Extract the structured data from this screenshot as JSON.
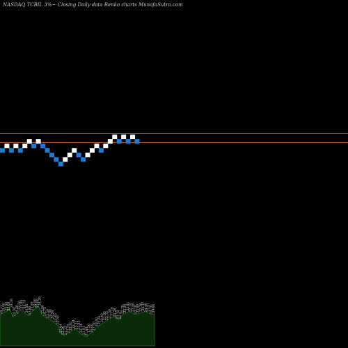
{
  "header": {
    "title": "NASDAQ TCBIL  3%~  Closing Daily data  Renko  charts MunafaSutra.com"
  },
  "colors": {
    "background": "#000000",
    "up_brick": "#ffffff",
    "down_brick": "#1e7ad6",
    "reference_line": "#c8641e",
    "volume_area": "#0a2a0a",
    "volume_outline": "#3a8a3a"
  },
  "chart_data": {
    "type": "renko",
    "title": "NASDAQ TCBIL  3%~  Closing Daily data  Renko  charts MunafaSutra.com",
    "brick_size_label": "3%~",
    "reference_lines": [
      "upper",
      "lower"
    ],
    "bricks": [
      {
        "dir": "down",
        "level": 0
      },
      {
        "dir": "up",
        "level": 1
      },
      {
        "dir": "down",
        "level": 0
      },
      {
        "dir": "up",
        "level": 1
      },
      {
        "dir": "down",
        "level": 0
      },
      {
        "dir": "up",
        "level": 1
      },
      {
        "dir": "up",
        "level": 2
      },
      {
        "dir": "down",
        "level": 1
      },
      {
        "dir": "up",
        "level": 2
      },
      {
        "dir": "down",
        "level": 1
      },
      {
        "dir": "down",
        "level": 0
      },
      {
        "dir": "down",
        "level": -1
      },
      {
        "dir": "down",
        "level": -2
      },
      {
        "dir": "down",
        "level": -3
      },
      {
        "dir": "up",
        "level": -2
      },
      {
        "dir": "up",
        "level": -1
      },
      {
        "dir": "up",
        "level": 0
      },
      {
        "dir": "down",
        "level": -1
      },
      {
        "dir": "down",
        "level": -2
      },
      {
        "dir": "up",
        "level": -1
      },
      {
        "dir": "up",
        "level": 0
      },
      {
        "dir": "up",
        "level": 1
      },
      {
        "dir": "down",
        "level": 0
      },
      {
        "dir": "up",
        "level": 1
      },
      {
        "dir": "up",
        "level": 2
      },
      {
        "dir": "up",
        "level": 3
      },
      {
        "dir": "down",
        "level": 2
      },
      {
        "dir": "up",
        "level": 3
      },
      {
        "dir": "down",
        "level": 2
      },
      {
        "dir": "up",
        "level": 3
      },
      {
        "dir": "down",
        "level": 2
      }
    ],
    "volume_labels": [
      "24.71",
      "24.00",
      "23.50",
      "23.60",
      "24.30",
      "24.50",
      "24.20",
      "23.50",
      "23.80",
      "24.10",
      "24.00",
      "23.90",
      "23.50",
      "24.00",
      "23.60",
      "24.29",
      "23.80",
      "24.75",
      "23.50",
      "24.00",
      "23.20",
      "22.45",
      "22.50",
      "21.64",
      "22.26",
      "21.35",
      "21.55",
      "22.10",
      "22.74",
      "23.33",
      "23.52",
      "22.14",
      "21.91",
      "21.44",
      "17.50",
      "18.00",
      "17.50",
      "19.50",
      "21.81",
      "22.40",
      "21.95",
      "22.33",
      "21.50",
      "21.10",
      "22.28",
      "23.33",
      "22.47",
      "22.78",
      "23.00",
      "22.81",
      "23.10",
      "23.50",
      "23.10",
      "22.90",
      "23.30",
      "24.37",
      "24.40",
      "23.91",
      "24.70",
      "24.60"
    ],
    "volume_values": [
      30,
      32,
      33,
      36,
      28,
      30,
      34,
      35,
      31,
      29,
      33,
      36,
      38,
      30,
      28,
      26,
      25,
      22,
      20,
      12,
      10,
      12,
      14,
      16,
      15,
      12,
      10,
      9,
      12,
      14,
      18,
      20,
      22,
      24,
      26,
      28,
      27,
      25,
      30,
      31,
      33,
      32,
      30,
      31,
      32,
      33,
      32,
      30,
      31
    ],
    "volume_range": [
      0,
      40
    ]
  }
}
